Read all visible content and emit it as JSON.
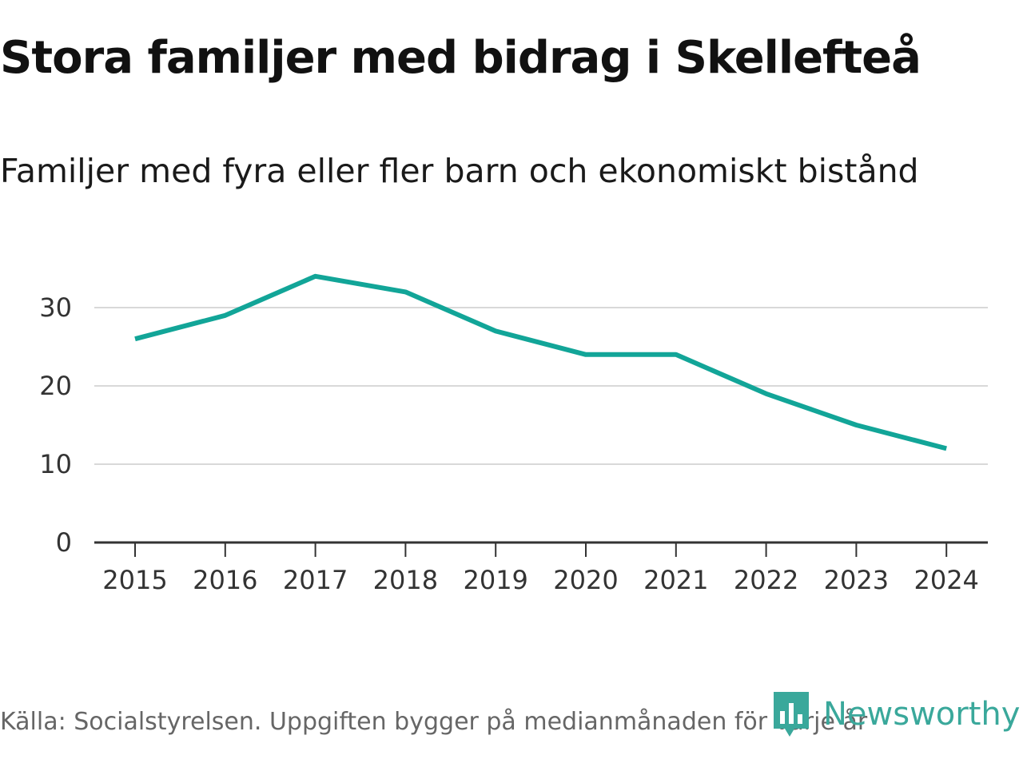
{
  "chart_data": {
    "type": "line",
    "title": "Stora familjer med bidrag i Skellefteå",
    "subtitle": "Familjer med fyra eller fler barn och ekonomiskt bistånd",
    "categories": [
      "2015",
      "2016",
      "2017",
      "2018",
      "2019",
      "2020",
      "2021",
      "2022",
      "2023",
      "2024"
    ],
    "series": [
      {
        "name": "Familjer med fyra eller fler barn och ekonomiskt bistånd",
        "values": [
          26,
          29,
          34,
          32,
          27,
          24,
          24,
          19,
          15,
          12
        ]
      }
    ],
    "yticks": [
      "0",
      "10",
      "20",
      "30"
    ],
    "ylim": [
      0,
      35
    ],
    "xlabel": "",
    "ylabel": "",
    "grid": true,
    "line_color": "#12a598",
    "grid_color": "#d9d9d9",
    "axis_color": "#333333"
  },
  "source": "Källa: Socialstyrelsen. Uppgiften bygger på medianmånaden för varje år",
  "logo": {
    "name": "Newsworthy",
    "color": "#3aa89b",
    "icon": "newsworthy-logo-icon"
  }
}
